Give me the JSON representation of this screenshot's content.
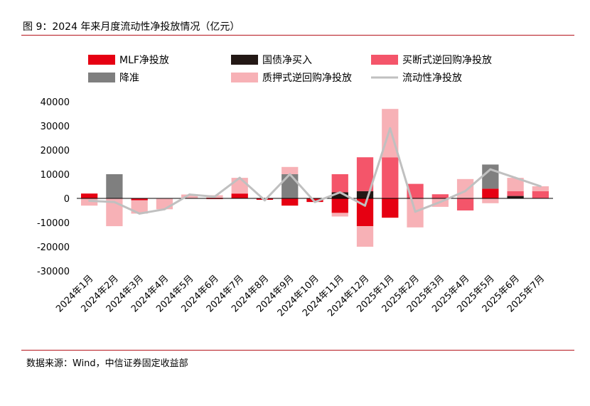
{
  "title": "图 9：2024 年来月度流动性净投放情况（亿元）",
  "source": "数据来源：Wind，中信证券固定收益部",
  "colors": {
    "mlf": "#e60012",
    "treasury": "#231815",
    "outright": "#f4556a",
    "rrr": "#7f7f7f",
    "pledged": "#f7b1b6",
    "net": "#c0c0c0",
    "rule": "#b5141c"
  },
  "chart_data": {
    "type": "bar",
    "stacked": true,
    "title": "",
    "xlabel": "",
    "ylabel": "",
    "ylim": [
      -30000,
      40000
    ],
    "yticks": [
      40000,
      30000,
      20000,
      10000,
      0,
      -10000,
      -20000,
      -30000
    ],
    "ytick_labels": [
      "40000",
      "30000",
      "20000",
      "10000",
      "0",
      "-10000",
      "-20000",
      "-30000"
    ],
    "categories": [
      "2024年1月",
      "2024年2月",
      "2024年3月",
      "2024年4月",
      "2024年5月",
      "2024年6月",
      "2024年7月",
      "2024年8月",
      "2024年9月",
      "2024年10月",
      "2024年11月",
      "2024年12月",
      "2025年1月",
      "2025年2月",
      "2025年3月",
      "2025年4月",
      "2025年5月",
      "2025年6月",
      "2025年7月"
    ],
    "series": [
      {
        "key": "mlf",
        "name": "MLF净投放",
        "type": "bar",
        "values": [
          2000,
          0,
          -800,
          0,
          0,
          -300,
          2000,
          -600,
          -3000,
          -1500,
          -6000,
          -11500,
          -8000,
          0,
          0,
          0,
          4000,
          0,
          0
        ]
      },
      {
        "key": "treasury",
        "name": "国债净买入",
        "type": "bar",
        "values": [
          0,
          0,
          0,
          0,
          0,
          0,
          0,
          0,
          0,
          0,
          2500,
          3000,
          0,
          0,
          0,
          0,
          0,
          1000,
          0
        ]
      },
      {
        "key": "outright",
        "name": "买断式逆回购净投放",
        "type": "bar",
        "values": [
          0,
          0,
          0,
          0,
          0,
          0,
          0,
          0,
          0,
          0,
          7500,
          14000,
          17000,
          6000,
          1700,
          -5000,
          0,
          2000,
          3000
        ]
      },
      {
        "key": "rrr",
        "name": "降准",
        "type": "bar",
        "values": [
          0,
          10000,
          0,
          0,
          0,
          0,
          0,
          0,
          10000,
          0,
          0,
          0,
          0,
          0,
          0,
          0,
          10000,
          0,
          0
        ]
      },
      {
        "key": "pledged",
        "name": "质押式逆回购净投放",
        "type": "bar",
        "values": [
          -3000,
          -11500,
          -5500,
          -4500,
          1600,
          1300,
          6500,
          0,
          3000,
          0,
          -1500,
          -8500,
          20000,
          -12000,
          -3500,
          8000,
          -2000,
          5500,
          2000
        ]
      },
      {
        "key": "net",
        "name": "流动性净投放",
        "type": "line",
        "values": [
          -1000,
          -1500,
          -6300,
          -4500,
          1600,
          700,
          8500,
          -800,
          10000,
          -1500,
          2500,
          -3000,
          29000,
          -5500,
          -1500,
          3000,
          12000,
          8500,
          5000
        ]
      }
    ],
    "legend_position": "top"
  }
}
